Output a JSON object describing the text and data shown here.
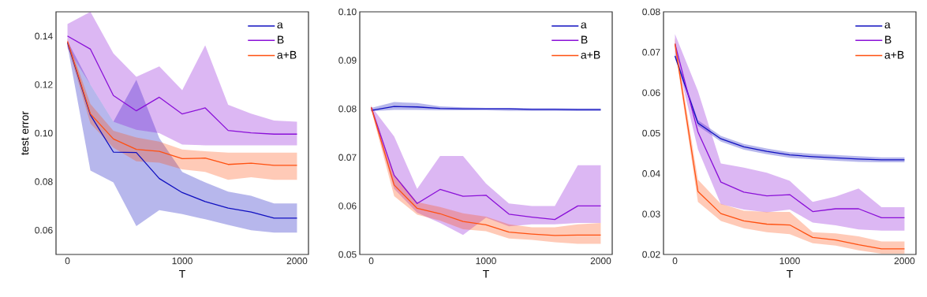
{
  "chart_data": [
    {
      "type": "line",
      "xlabel": "T",
      "ylabel": "test error",
      "legend": "top right",
      "xlim": [
        -100,
        2100
      ],
      "ylim": [
        0.05,
        0.15
      ],
      "xticks": [
        0,
        1000,
        2000
      ],
      "yticks": [
        0.06,
        0.08,
        {
          "value": 0.1,
          "label": "0.10"
        },
        0.12,
        0.14
      ],
      "x": [
        0,
        200,
        400,
        600,
        800,
        1000,
        1200,
        1400,
        1600,
        1800,
        2000
      ],
      "series": [
        {
          "name": "a",
          "color": "#1010c0",
          "values": [
            0.1373,
            0.1074,
            0.0922,
            0.092,
            0.0813,
            0.0755,
            0.0718,
            0.0691,
            0.0675,
            0.065,
            0.065
          ],
          "lower": [
            0.136,
            0.0846,
            0.0797,
            0.0617,
            0.0683,
            0.0666,
            0.0645,
            0.0622,
            0.06,
            0.059,
            0.059
          ],
          "upper": [
            0.138,
            0.12,
            0.1047,
            0.122,
            0.098,
            0.084,
            0.0797,
            0.0759,
            0.0742,
            0.071,
            0.071
          ]
        },
        {
          "name": "B",
          "color": "#8a10d8",
          "values": [
            0.14,
            0.1346,
            0.1155,
            0.1092,
            0.1148,
            0.1079,
            0.1104,
            0.1011,
            0.1001,
            0.0996,
            0.0996
          ],
          "lower": [
            0.135,
            0.12,
            0.1047,
            0.1014,
            0.1,
            0.0953,
            0.095,
            0.095,
            0.095,
            0.095,
            0.095
          ],
          "upper": [
            0.145,
            0.15,
            0.1329,
            0.1232,
            0.1275,
            0.1177,
            0.1362,
            0.1117,
            0.108,
            0.1052,
            0.1047
          ]
        },
        {
          "name": "a+B",
          "color": "#ff5010",
          "values": [
            0.1378,
            0.1079,
            0.0976,
            0.0933,
            0.0925,
            0.0895,
            0.0897,
            0.0871,
            0.0876,
            0.0867,
            0.0867
          ],
          "lower": [
            0.136,
            0.104,
            0.094,
            0.0884,
            0.0878,
            0.0851,
            0.084,
            0.0808,
            0.0818,
            0.0808,
            0.0808
          ],
          "upper": [
            0.139,
            0.112,
            0.101,
            0.0982,
            0.0965,
            0.0933,
            0.0925,
            0.092,
            0.092,
            0.092,
            0.092
          ]
        }
      ]
    },
    {
      "type": "line",
      "xlabel": "T",
      "legend": "top right",
      "xlim": [
        -100,
        2100
      ],
      "ylim": [
        0.05,
        0.1
      ],
      "xticks": [
        0,
        1000,
        2000
      ],
      "yticks": [
        0.05,
        0.06,
        0.07,
        0.08,
        0.09,
        {
          "value": 0.1,
          "label": "0.10"
        }
      ],
      "x": [
        0,
        200,
        400,
        600,
        800,
        1000,
        1200,
        1400,
        1600,
        1800,
        2000
      ],
      "series": [
        {
          "name": "a",
          "color": "#1010c0",
          "values": [
            0.0797,
            0.0805,
            0.0804,
            0.0801,
            0.08,
            0.08,
            0.08,
            0.0799,
            0.0799,
            0.0798,
            0.0798
          ],
          "lower": [
            0.0795,
            0.0798,
            0.0798,
            0.0797,
            0.0797,
            0.0797,
            0.0796,
            0.0796,
            0.0796,
            0.0796,
            0.0796
          ],
          "upper": [
            0.0802,
            0.0814,
            0.0812,
            0.0805,
            0.0803,
            0.0802,
            0.0802,
            0.0801,
            0.0801,
            0.0801,
            0.0801
          ]
        },
        {
          "name": "B",
          "color": "#8a10d8",
          "values": [
            0.0803,
            0.0663,
            0.0605,
            0.0634,
            0.062,
            0.0622,
            0.0583,
            0.0577,
            0.0572,
            0.06,
            0.06
          ],
          "lower": [
            0.08,
            0.0635,
            0.0586,
            0.0565,
            0.054,
            0.0576,
            0.0558,
            0.0562,
            0.0562,
            0.0565,
            0.0565
          ],
          "upper": [
            0.0805,
            0.0743,
            0.0635,
            0.0703,
            0.0703,
            0.0646,
            0.0605,
            0.06,
            0.06,
            0.0684,
            0.0684
          ]
        },
        {
          "name": "a+B",
          "color": "#ff5010",
          "values": [
            0.0803,
            0.0643,
            0.0595,
            0.0584,
            0.0568,
            0.0561,
            0.0546,
            0.0542,
            0.0539,
            0.054,
            0.054
          ],
          "lower": [
            0.0798,
            0.062,
            0.0582,
            0.057,
            0.0552,
            0.0548,
            0.0533,
            0.053,
            0.0525,
            0.0522,
            0.0522
          ],
          "upper": [
            0.0808,
            0.0665,
            0.0608,
            0.0598,
            0.0585,
            0.0578,
            0.0562,
            0.0556,
            0.0556,
            0.0562,
            0.0565
          ]
        }
      ]
    },
    {
      "type": "line",
      "xlabel": "T",
      "legend": "top right",
      "xlim": [
        -100,
        2100
      ],
      "ylim": [
        0.02,
        0.08
      ],
      "xticks": [
        0,
        1000,
        2000
      ],
      "yticks": [
        0.02,
        0.03,
        0.04,
        0.05,
        0.06,
        0.07,
        0.08
      ],
      "x": [
        0,
        200,
        400,
        600,
        800,
        1000,
        1200,
        1400,
        1600,
        1800,
        2000
      ],
      "series": [
        {
          "name": "a",
          "color": "#1010c0",
          "values": [
            0.0691,
            0.0525,
            0.0486,
            0.0466,
            0.0455,
            0.0446,
            0.0442,
            0.0439,
            0.0436,
            0.0434,
            0.0434
          ],
          "lower": [
            0.0685,
            0.0518,
            0.0479,
            0.0459,
            0.0448,
            0.0439,
            0.0435,
            0.0432,
            0.0429,
            0.0428,
            0.0428
          ],
          "upper": [
            0.0698,
            0.0532,
            0.0493,
            0.0473,
            0.0462,
            0.0453,
            0.0449,
            0.0446,
            0.0443,
            0.044,
            0.044
          ]
        },
        {
          "name": "B",
          "color": "#8a10d8",
          "values": [
            0.0721,
            0.0503,
            0.0379,
            0.0354,
            0.0345,
            0.0348,
            0.0306,
            0.0313,
            0.0313,
            0.0291,
            0.0291
          ],
          "lower": [
            0.07,
            0.046,
            0.0324,
            0.0311,
            0.0304,
            0.0311,
            0.0279,
            0.0272,
            0.0262,
            0.0259,
            0.0259
          ],
          "upper": [
            0.0745,
            0.0604,
            0.0425,
            0.0415,
            0.0402,
            0.0382,
            0.033,
            0.0343,
            0.0363,
            0.0317,
            0.0317
          ]
        },
        {
          "name": "a+B",
          "color": "#ff5010",
          "values": [
            0.0721,
            0.0356,
            0.0301,
            0.0283,
            0.0275,
            0.0273,
            0.0242,
            0.0236,
            0.0224,
            0.0214,
            0.0214
          ],
          "lower": [
            0.071,
            0.033,
            0.0283,
            0.0265,
            0.0255,
            0.025,
            0.0228,
            0.0222,
            0.021,
            0.0202,
            0.0202
          ],
          "upper": [
            0.0735,
            0.0385,
            0.0325,
            0.0308,
            0.0305,
            0.0305,
            0.0255,
            0.0252,
            0.0245,
            0.0232,
            0.0232
          ]
        }
      ]
    }
  ]
}
